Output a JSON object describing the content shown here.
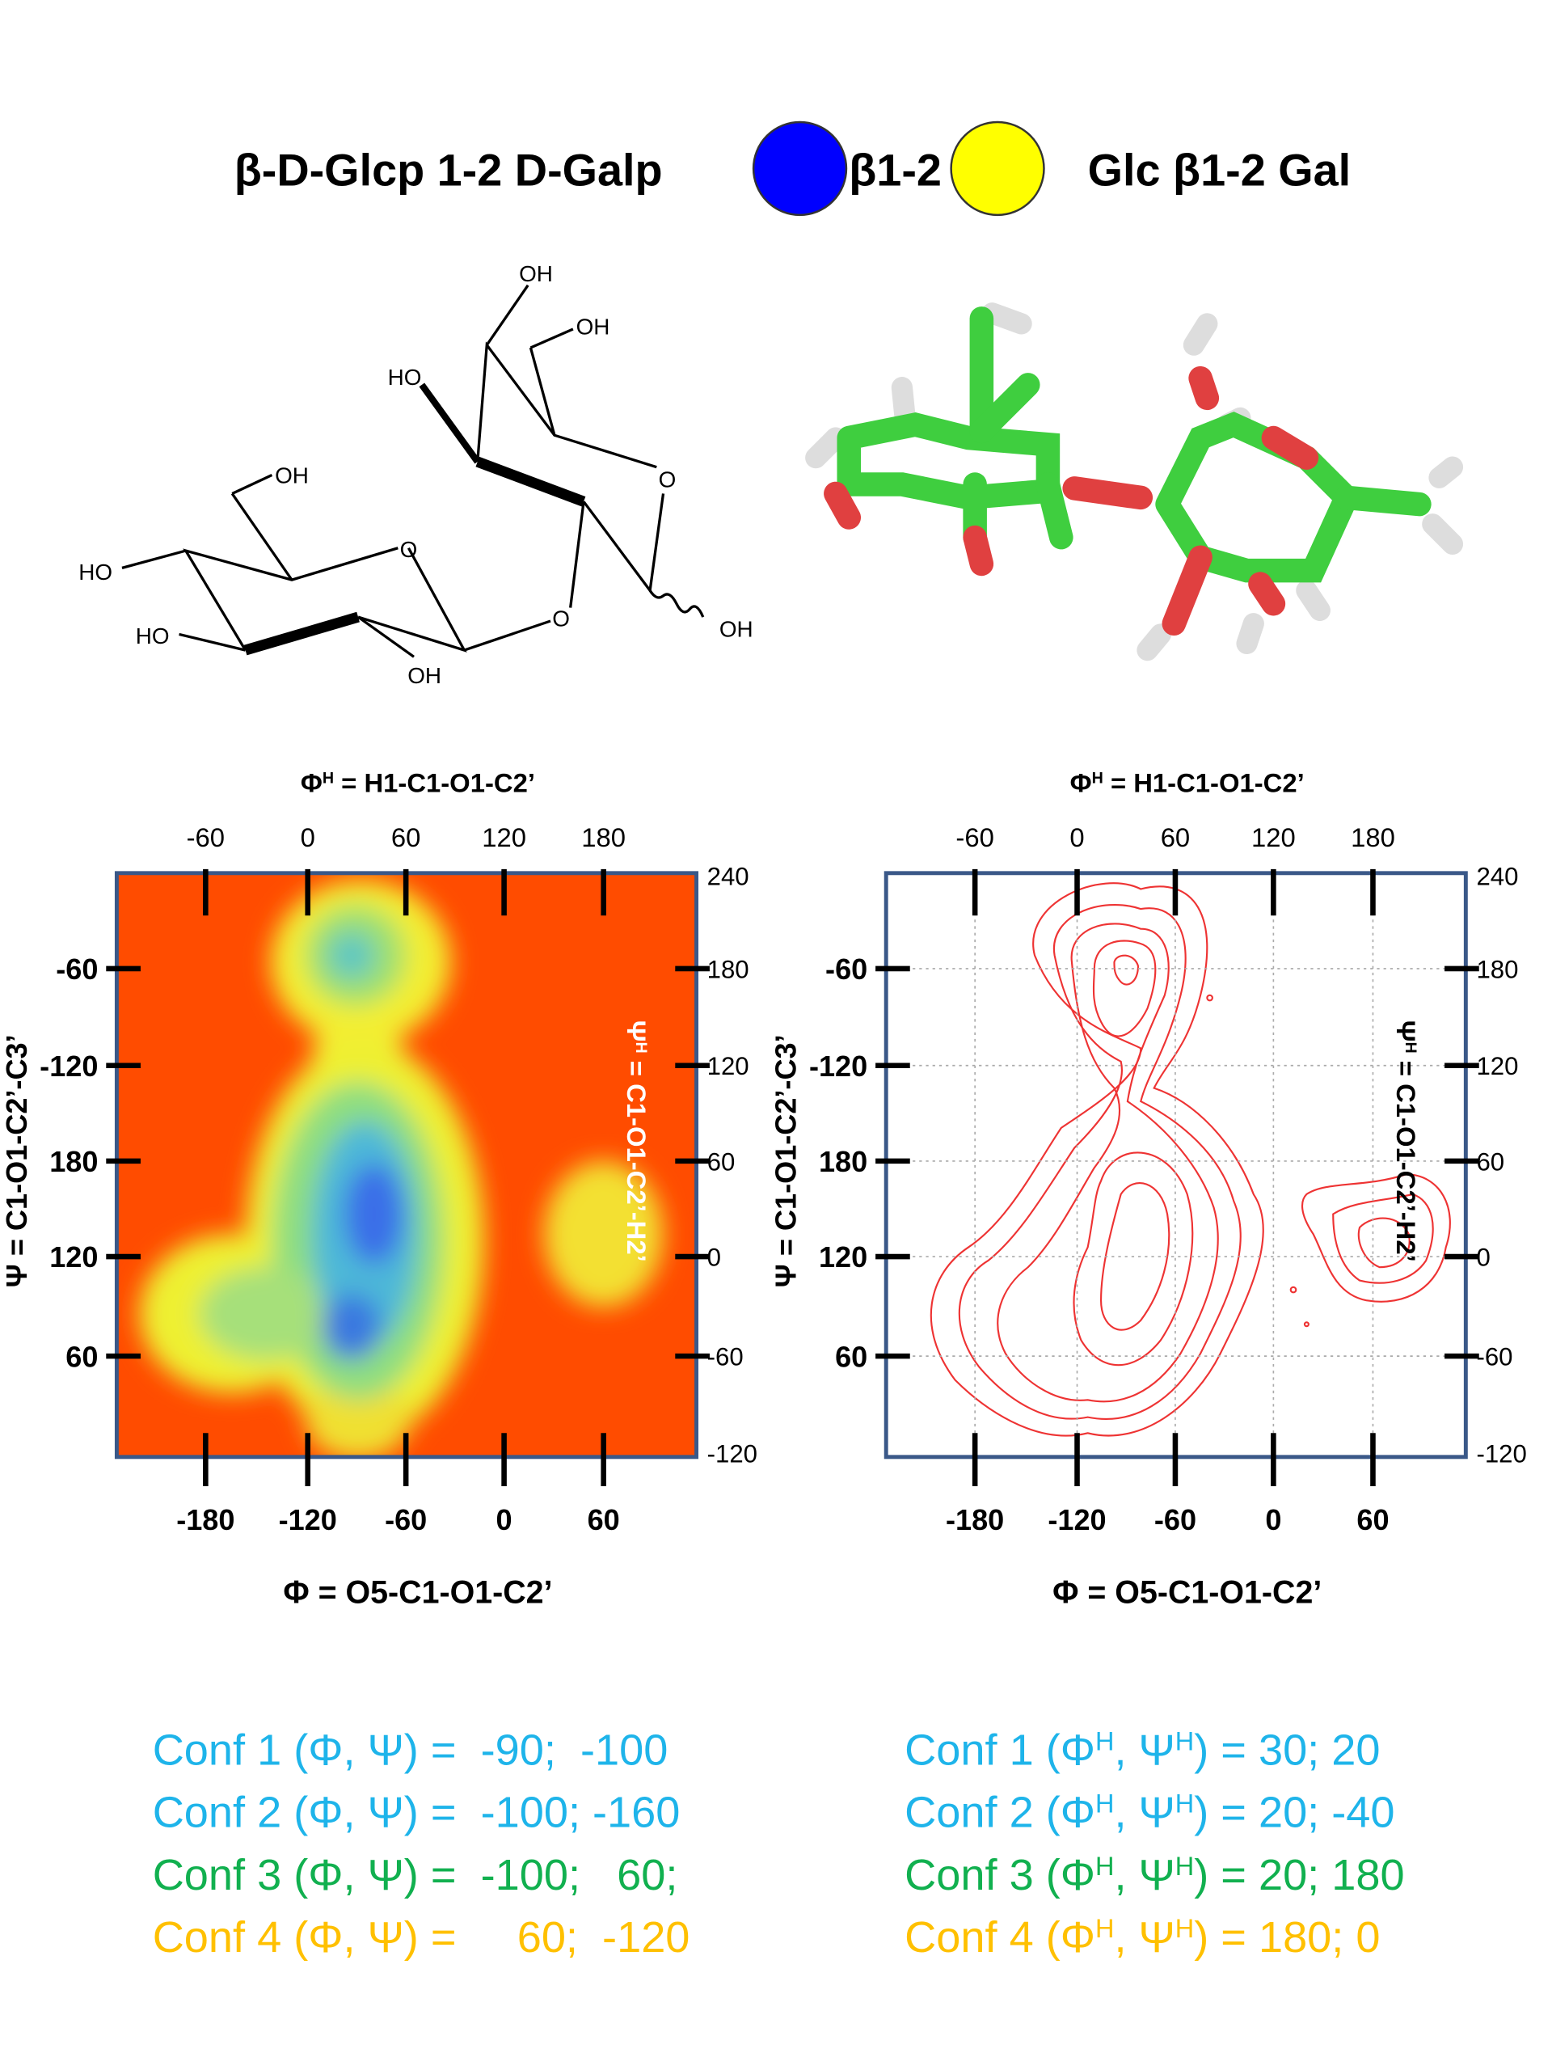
{
  "header": {
    "title": "β-D-Glcp 1-2 D-Galp",
    "legend": [
      {
        "label": "β1-2",
        "color": "#0000ff"
      },
      {
        "label": "Glc β1-2 Gal",
        "color": "#ffff00"
      }
    ]
  },
  "structure_labels": [
    "OH",
    "OH",
    "HO",
    "O",
    "OH",
    "O",
    "HO",
    "HO",
    "O",
    "OH",
    "OH"
  ],
  "plots": [
    {
      "top_label": {
        "symbol": "Φ",
        "sup": "H",
        "rest": " = H1-C1-O1-C2’"
      },
      "top_ticks": [
        -60,
        0,
        60,
        120,
        180
      ],
      "right_ticks": [
        240,
        180,
        120,
        60,
        0,
        -60,
        -120
      ],
      "left_ticks": [
        -60,
        -120,
        180,
        120,
        60
      ],
      "bottom_ticks": [
        -180,
        -120,
        -60,
        0,
        60
      ],
      "bottom_label": {
        "symbol": "Φ",
        "rest": " = O5-C1-O1-C2’"
      },
      "left_label": {
        "symbol": "Ψ",
        "rest": " = C1-O1-C2’-C3’"
      },
      "right_label": {
        "symbol": "Ψ",
        "sup": "H",
        "rest": " = C1-O1-C2’-H2’"
      }
    },
    {
      "top_label": {
        "symbol": "Φ",
        "sup": "H",
        "rest": " = H1-C1-O1-C2’"
      },
      "top_ticks": [
        -60,
        0,
        60,
        120,
        180
      ],
      "right_ticks": [
        240,
        180,
        120,
        60,
        0,
        -60,
        -120
      ],
      "left_ticks": [
        -60,
        -120,
        180,
        120,
        60
      ],
      "bottom_ticks": [
        -180,
        -120,
        -60,
        0,
        60
      ],
      "bottom_label": {
        "symbol": "Φ",
        "rest": " = O5-C1-O1-C2’"
      },
      "left_label": {
        "symbol": "Ψ",
        "rest": " = C1-O1-C2’-C3’"
      },
      "right_label": {
        "symbol": "Ψ",
        "sup": "H",
        "rest": " = C1-O1-C2’-H2’"
      }
    }
  ],
  "conformations_left": [
    {
      "text": "Conf 1 (Φ, Ψ) =",
      "values": "  -90;  -100",
      "color": "#1eb4ea"
    },
    {
      "text": "Conf 2 (Φ, Ψ) =",
      "values": "  -100; -160",
      "color": "#1eb4ea"
    },
    {
      "text": "Conf 3 (Φ, Ψ) =",
      "values": "  -100;   60;",
      "color": "#11b04f"
    },
    {
      "text": "Conf 4 (Φ, Ψ) =",
      "values": "     60;  -120",
      "color": "#ffc000"
    }
  ],
  "conformations_right": [
    {
      "prefix": "Conf 1 (Φ",
      "sup1": "H",
      "mid": ", Ψ",
      "sup2": "H",
      "suffix": ") = 30; 20",
      "color": "#1eb4ea"
    },
    {
      "prefix": "Conf 2 (Φ",
      "sup1": "H",
      "mid": ", Ψ",
      "sup2": "H",
      "suffix": ") = 20; -40",
      "color": "#1eb4ea"
    },
    {
      "prefix": "Conf 3 (Φ",
      "sup1": "H",
      "mid": ", Ψ",
      "sup2": "H",
      "suffix": ") = 20; 180",
      "color": "#11b04f"
    },
    {
      "prefix": "Conf 4 (Φ",
      "sup1": "H",
      "mid": ", Ψ",
      "sup2": "H",
      "suffix": ") = 180; 0",
      "color": "#ffc000"
    }
  ]
}
